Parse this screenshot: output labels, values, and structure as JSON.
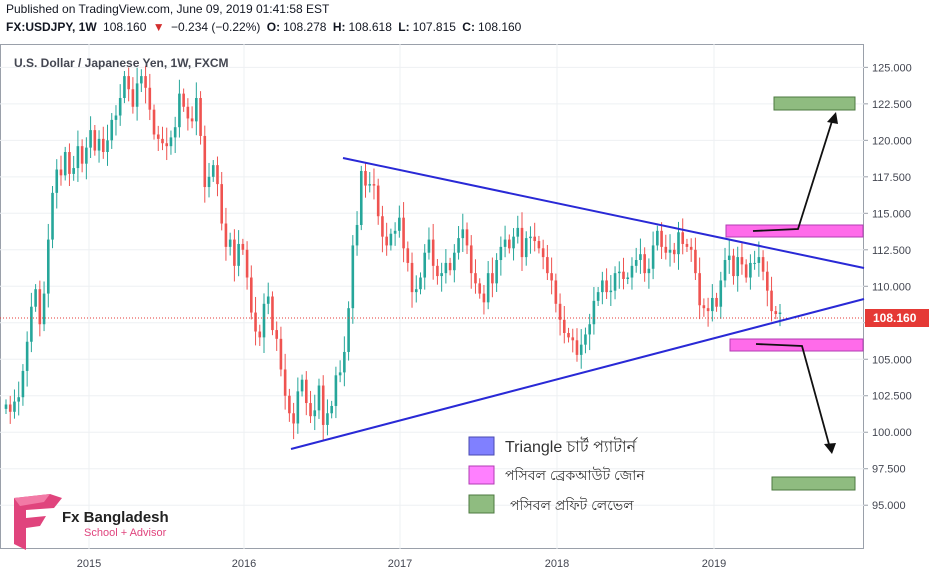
{
  "header": {
    "published": "Published on TradingView.com, June 09, 2019 01:41:58 EST",
    "symbol": "FX:USDJPY, 1W",
    "last": "108.160",
    "change": "−0.234 (−0.22%)",
    "open_label": "O:",
    "open": "108.278",
    "high_label": "H:",
    "high": "108.618",
    "low_label": "L:",
    "low": "107.815",
    "close_label": "C:",
    "close": "108.160"
  },
  "chart_title": "U.S. Dollar / Japanese Yen, 1W, FXCM",
  "last_price_tag": "108.160",
  "legend": [
    {
      "label": "Triangle চার্ট প্যাটার্ন",
      "color": "#8080ff"
    },
    {
      "label": "পসিবল ব্রেকআউট জোন",
      "color": "#ff80ff"
    },
    {
      "label": "পসিবল প্রফিট লেভেল",
      "color": "#8fbc80"
    }
  ],
  "brand": {
    "name": "Fx Bangladesh",
    "tagline": "School + Advisor"
  },
  "colors": {
    "up": "#26a69a",
    "down": "#ef5350",
    "trendline": "#2929d6",
    "breakout_zone": "#ff6bea",
    "profit_zone": "#8fbc80"
  },
  "chart_data": {
    "type": "candlestick",
    "instrument": "USDJPY",
    "timeframe": "1W",
    "y_ticks": [
      "125.000",
      "122.500",
      "120.000",
      "117.500",
      "115.000",
      "112.500",
      "110.000",
      "107.500",
      "105.000",
      "102.500",
      "100.000",
      "97.500",
      "95.000"
    ],
    "x_ticks": [
      "2015",
      "2016",
      "2017",
      "2018",
      "2019"
    ],
    "ylim": [
      92.0,
      126.6
    ],
    "closes": [
      101.9,
      101.4,
      102.1,
      102.4,
      104.2,
      106.2,
      108.6,
      109.8,
      107.4,
      109.5,
      113.2,
      116.4,
      118.0,
      117.6,
      119.2,
      117.7,
      118.1,
      119.6,
      118.4,
      119.5,
      120.7,
      119.3,
      120.1,
      119.2,
      120.0,
      121.4,
      121.7,
      122.9,
      124.4,
      123.5,
      122.3,
      123.9,
      124.4,
      123.6,
      122.1,
      120.4,
      120.1,
      119.8,
      119.6,
      120.2,
      120.9,
      123.2,
      122.3,
      121.5,
      121.3,
      122.9,
      120.3,
      116.8,
      117.5,
      118.3,
      117.0,
      114.3,
      112.7,
      113.2,
      111.4,
      112.9,
      112.5,
      110.6,
      108.2,
      106.9,
      106.5,
      108.8,
      109.3,
      107.0,
      106.4,
      104.3,
      102.5,
      101.3,
      100.6,
      102.8,
      103.6,
      102.0,
      101.1,
      101.5,
      103.2,
      100.5,
      101.3,
      101.8,
      103.9,
      104.1,
      105.5,
      108.5,
      112.8,
      114.2,
      117.9,
      116.9,
      117.0,
      116.9,
      114.8,
      113.4,
      112.8,
      113.6,
      113.8,
      114.7,
      112.6,
      111.6,
      109.6,
      109.8,
      110.6,
      112.3,
      113.2,
      111.4,
      110.7,
      110.9,
      111.6,
      111.1,
      112.3,
      113.3,
      113.9,
      112.8,
      110.9,
      110.2,
      109.5,
      108.9,
      110.9,
      110.2,
      111.8,
      112.7,
      113.2,
      112.6,
      113.4,
      114.0,
      112.0,
      113.3,
      113.4,
      113.1,
      112.6,
      112.0,
      110.9,
      110.4,
      108.8,
      107.7,
      106.8,
      106.5,
      106.3,
      105.3,
      106.0,
      106.7,
      107.4,
      109.0,
      109.6,
      110.4,
      109.6,
      109.7,
      110.9,
      111.0,
      110.5,
      110.6,
      111.4,
      111.8,
      112.2,
      110.9,
      111.2,
      112.8,
      113.8,
      112.7,
      112.3,
      112.5,
      112.2,
      113.7,
      112.9,
      112.7,
      112.5,
      110.9,
      108.7,
      108.5,
      108.3,
      109.2,
      108.6,
      110.4,
      111.8,
      112.1,
      110.7,
      112.0,
      111.5,
      110.6,
      111.6,
      111.6,
      112.0,
      111.0,
      109.7,
      108.3,
      108.1,
      108.2
    ]
  },
  "annotations": {
    "breakout_zones": [
      "upper: 113.7 – 114.5",
      "lower: 106.2 – 107.1"
    ],
    "profit_levels": [
      "upper: 122.4 – 123.3",
      "lower: 96.8 – 97.7"
    ]
  }
}
